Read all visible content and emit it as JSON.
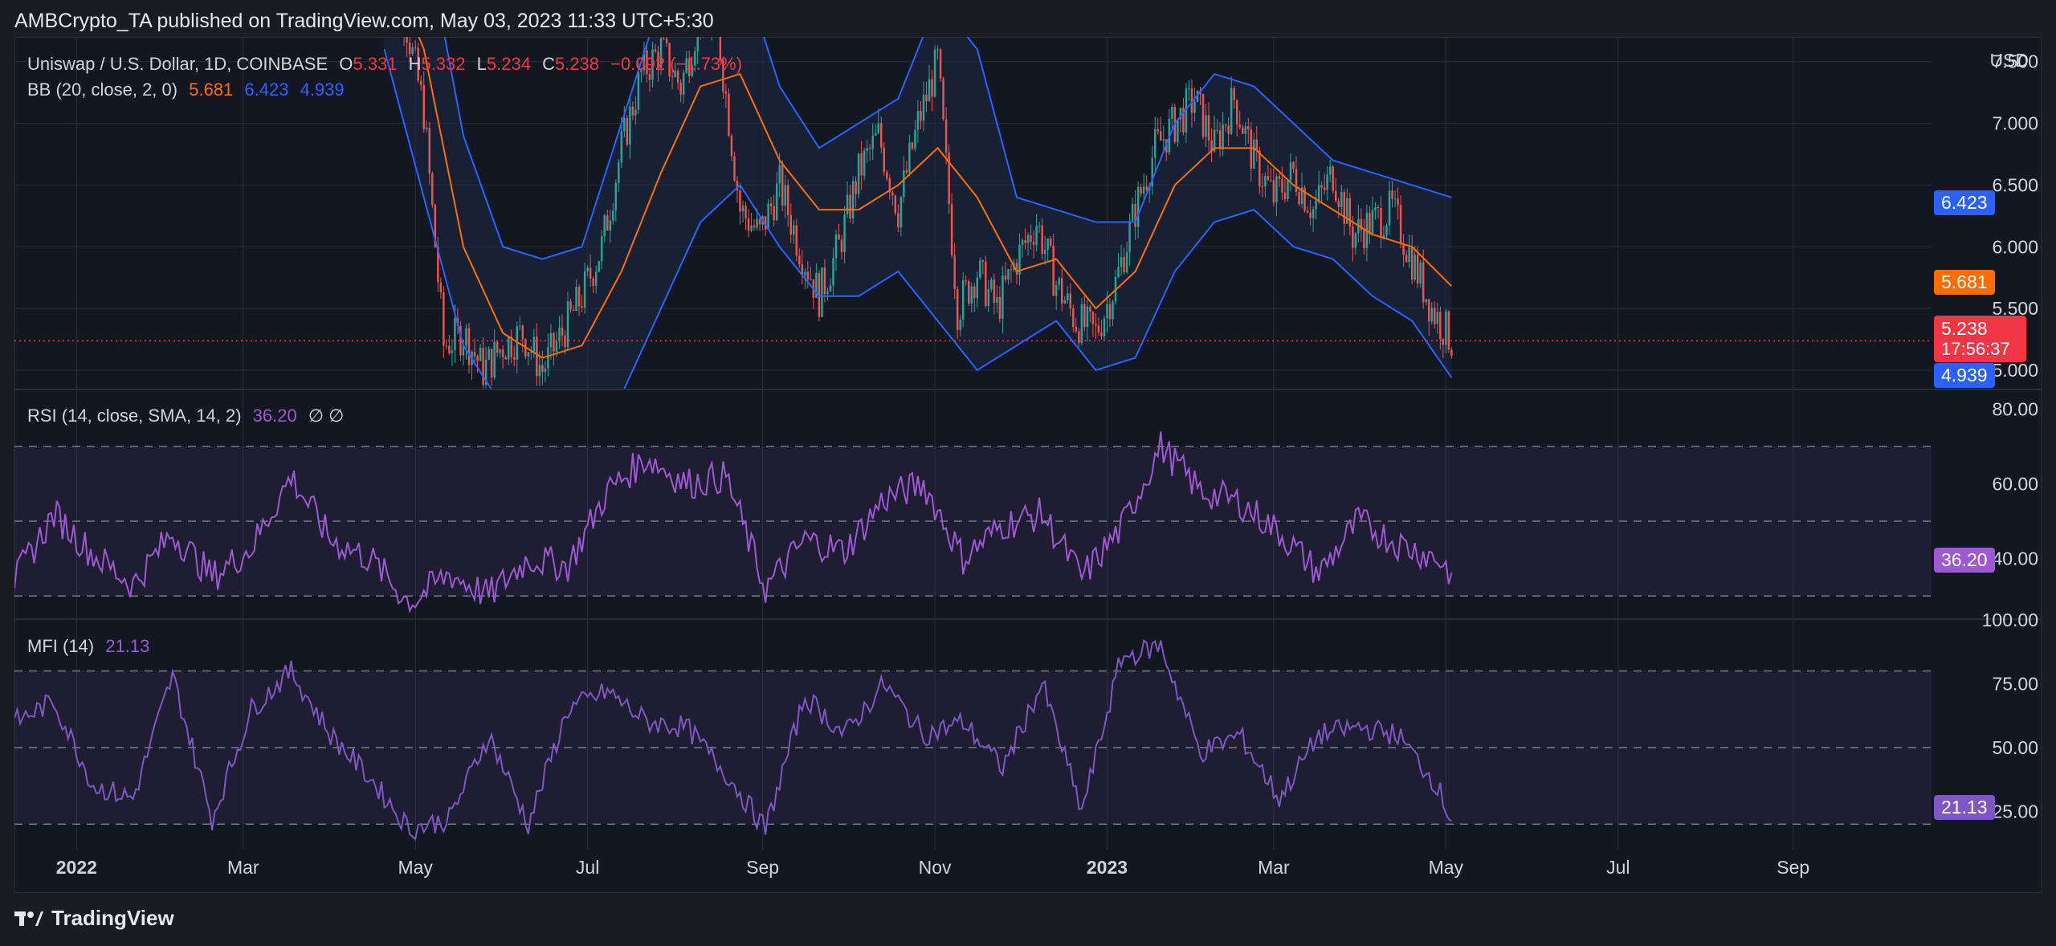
{
  "header": {
    "published_line": "AMBCrypto_TA published on TradingView.com, May 03, 2023 11:33 UTC+5:30"
  },
  "footer": {
    "brand": "TradingView"
  },
  "colors": {
    "background": "#131722",
    "grid": "#2a2e39",
    "candle_up": "#26a69a",
    "candle_down": "#ef5350",
    "bb_upper_lower": "#2962ff",
    "bb_basis": "#ff6d00",
    "rsi_line": "#9c59d1",
    "mfi_line": "#7e57c2",
    "last_price": "#f23645",
    "band_fill": "#1e2a44"
  },
  "legend": {
    "main": {
      "symbol": "Uniswap / U.S. Dollar, 1D, COINBASE",
      "o_label": "O",
      "o_value": "5.331",
      "h_label": "H",
      "h_value": "5.332",
      "l_label": "L",
      "l_value": "5.234",
      "c_label": "C",
      "c_value": "5.238",
      "change": "−0.092 (−1.73%)"
    },
    "bb": {
      "label": "BB (20, close, 2, 0)",
      "basis": "5.681",
      "upper": "6.423",
      "lower": "4.939"
    },
    "rsi": {
      "label": "RSI (14, close, SMA, 14, 2)",
      "value": "36.20",
      "extra": "∅ ∅"
    },
    "mfi": {
      "label": "MFI (14)",
      "value": "21.13"
    }
  },
  "axis_badges": {
    "upper": "6.423",
    "basis": "5.681",
    "last_price": "5.238",
    "countdown": "17:56:37",
    "lower": "4.939",
    "rsi": "36.20",
    "mfi": "21.13"
  },
  "chart_data": [
    {
      "type": "candlestick",
      "title": "Uniswap / U.S. Dollar, 1D, COINBASE",
      "currency": "USD",
      "x_ticks": [
        "2022",
        "Mar",
        "May",
        "Jul",
        "Sep",
        "Nov",
        "2023",
        "Mar",
        "May",
        "Jul",
        "Sep"
      ],
      "x_tick_dates": [
        "2022-01-01",
        "2022-03-01",
        "2022-05-01",
        "2022-07-01",
        "2022-09-01",
        "2022-11-01",
        "2023-01-01",
        "2023-03-01",
        "2023-05-01",
        "2023-07-01",
        "2023-09-01"
      ],
      "x_range": [
        "2021-12-10",
        "2023-10-20"
      ],
      "y_ticks": [
        "7.500",
        "7.000",
        "6.500",
        "6.000",
        "5.500",
        "5.000"
      ],
      "y_range": [
        4.85,
        7.7
      ],
      "last": {
        "open": 5.331,
        "high": 5.332,
        "low": 5.234,
        "close": 5.238,
        "change": "−0.092 (−1.73%)"
      },
      "close_series": {
        "dates": [
          "2022-04-20",
          "2022-04-27",
          "2022-05-04",
          "2022-05-11",
          "2022-05-18",
          "2022-05-25",
          "2022-06-01",
          "2022-06-08",
          "2022-06-15",
          "2022-06-22",
          "2022-06-29",
          "2022-07-06",
          "2022-07-13",
          "2022-07-20",
          "2022-07-27",
          "2022-08-03",
          "2022-08-10",
          "2022-08-17",
          "2022-08-24",
          "2022-08-31",
          "2022-09-07",
          "2022-09-14",
          "2022-09-21",
          "2022-09-28",
          "2022-10-05",
          "2022-10-12",
          "2022-10-19",
          "2022-10-26",
          "2022-11-02",
          "2022-11-09",
          "2022-11-16",
          "2022-11-23",
          "2022-11-30",
          "2022-12-07",
          "2022-12-14",
          "2022-12-21",
          "2022-12-28",
          "2023-01-04",
          "2023-01-11",
          "2023-01-18",
          "2023-01-25",
          "2023-02-01",
          "2023-02-08",
          "2023-02-15",
          "2023-02-22",
          "2023-03-01",
          "2023-03-08",
          "2023-03-15",
          "2023-03-22",
          "2023-03-29",
          "2023-04-05",
          "2023-04-12",
          "2023-04-19",
          "2023-04-26",
          "2023-05-03"
        ],
        "values": [
          8.3,
          7.9,
          7.1,
          5.2,
          5.3,
          5.0,
          5.2,
          5.3,
          5.0,
          5.3,
          5.6,
          6.0,
          6.8,
          7.4,
          7.6,
          7.3,
          7.9,
          7.6,
          6.3,
          6.1,
          6.5,
          6.0,
          5.6,
          6.0,
          6.6,
          6.9,
          6.3,
          7.0,
          7.5,
          5.5,
          5.8,
          5.5,
          5.9,
          6.2,
          5.7,
          5.4,
          5.3,
          5.7,
          6.3,
          6.8,
          7.0,
          7.2,
          6.8,
          7.2,
          6.7,
          6.4,
          6.6,
          6.3,
          6.6,
          6.1,
          6.2,
          6.3,
          5.9,
          5.5,
          5.238
        ]
      },
      "bollinger": {
        "label": "BB (20, close, 2, 0)",
        "dates": [
          "2022-04-20",
          "2022-05-04",
          "2022-05-18",
          "2022-06-01",
          "2022-06-15",
          "2022-06-29",
          "2022-07-13",
          "2022-07-27",
          "2022-08-10",
          "2022-08-24",
          "2022-09-07",
          "2022-09-21",
          "2022-10-05",
          "2022-10-19",
          "2022-11-02",
          "2022-11-16",
          "2022-11-30",
          "2022-12-14",
          "2022-12-28",
          "2023-01-11",
          "2023-01-25",
          "2023-02-08",
          "2023-02-22",
          "2023-03-08",
          "2023-03-22",
          "2023-04-05",
          "2023-04-19",
          "2023-05-03"
        ],
        "upper": [
          9.0,
          8.6,
          6.9,
          6.0,
          5.9,
          6.0,
          7.0,
          8.0,
          8.4,
          8.3,
          7.3,
          6.8,
          7.0,
          7.2,
          8.0,
          7.6,
          6.4,
          6.3,
          6.2,
          6.2,
          7.0,
          7.4,
          7.3,
          7.0,
          6.7,
          6.6,
          6.5,
          6.4
        ],
        "basis": [
          8.4,
          7.6,
          6.0,
          5.3,
          5.1,
          5.2,
          5.8,
          6.6,
          7.3,
          7.4,
          6.7,
          6.3,
          6.3,
          6.5,
          6.8,
          6.4,
          5.8,
          5.9,
          5.5,
          5.8,
          6.5,
          6.8,
          6.8,
          6.5,
          6.3,
          6.1,
          6.0,
          5.681
        ],
        "lower": [
          7.6,
          6.4,
          5.2,
          4.7,
          4.5,
          4.6,
          4.8,
          5.5,
          6.2,
          6.5,
          6.0,
          5.6,
          5.6,
          5.8,
          5.4,
          5.0,
          5.2,
          5.4,
          5.0,
          5.1,
          5.8,
          6.2,
          6.3,
          6.0,
          5.9,
          5.6,
          5.4,
          4.939
        ]
      }
    },
    {
      "type": "line",
      "title": "RSI (14, close, SMA, 14, 2)",
      "y_ticks": [
        "80.00",
        "60.00",
        "40.00"
      ],
      "y_range": [
        24,
        85
      ],
      "bands": {
        "upper": 70,
        "middle": 50,
        "lower": 30
      },
      "dates": [
        "2021-12-10",
        "2021-12-24",
        "2022-01-07",
        "2022-01-21",
        "2022-02-04",
        "2022-02-18",
        "2022-03-04",
        "2022-03-18",
        "2022-04-01",
        "2022-04-15",
        "2022-04-29",
        "2022-05-13",
        "2022-05-27",
        "2022-06-10",
        "2022-06-24",
        "2022-07-08",
        "2022-07-22",
        "2022-08-05",
        "2022-08-19",
        "2022-09-02",
        "2022-09-16",
        "2022-09-30",
        "2022-10-14",
        "2022-10-28",
        "2022-11-11",
        "2022-11-25",
        "2022-12-09",
        "2022-12-23",
        "2023-01-06",
        "2023-01-20",
        "2023-02-03",
        "2023-02-17",
        "2023-03-03",
        "2023-03-17",
        "2023-03-31",
        "2023-04-14",
        "2023-04-28",
        "2023-05-03"
      ],
      "values": [
        34,
        52,
        41,
        33,
        47,
        35,
        43,
        62,
        45,
        40,
        28,
        36,
        30,
        40,
        38,
        58,
        67,
        60,
        62,
        32,
        45,
        42,
        56,
        60,
        40,
        49,
        52,
        35,
        48,
        70,
        58,
        55,
        47,
        36,
        50,
        44,
        40,
        36.2
      ]
    },
    {
      "type": "line",
      "title": "MFI (14)",
      "y_ticks": [
        "100.00",
        "75.00",
        "50.00",
        "25.00"
      ],
      "y_range": [
        10,
        100
      ],
      "bands": {
        "upper": 80,
        "middle": 50,
        "lower": 20
      },
      "dates": [
        "2021-12-10",
        "2021-12-24",
        "2022-01-07",
        "2022-01-21",
        "2022-02-04",
        "2022-02-18",
        "2022-03-04",
        "2022-03-18",
        "2022-04-01",
        "2022-04-15",
        "2022-04-29",
        "2022-05-13",
        "2022-05-27",
        "2022-06-10",
        "2022-06-24",
        "2022-07-08",
        "2022-07-22",
        "2022-08-05",
        "2022-08-19",
        "2022-09-02",
        "2022-09-16",
        "2022-09-30",
        "2022-10-14",
        "2022-10-28",
        "2022-11-11",
        "2022-11-25",
        "2022-12-09",
        "2022-12-23",
        "2023-01-06",
        "2023-01-20",
        "2023-02-03",
        "2023-02-17",
        "2023-03-03",
        "2023-03-17",
        "2023-03-31",
        "2023-04-14",
        "2023-04-28",
        "2023-05-03"
      ],
      "values": [
        60,
        68,
        35,
        30,
        78,
        22,
        65,
        80,
        55,
        38,
        18,
        22,
        55,
        20,
        65,
        72,
        60,
        58,
        40,
        18,
        70,
        55,
        75,
        55,
        60,
        42,
        75,
        25,
        85,
        90,
        48,
        55,
        30,
        55,
        58,
        55,
        35,
        21.13
      ]
    }
  ]
}
